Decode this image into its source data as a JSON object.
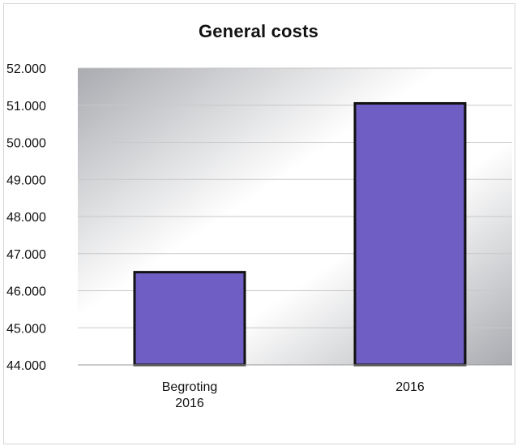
{
  "chart_data": {
    "type": "bar",
    "title": "General costs",
    "categories": [
      [
        "Begroting",
        "2016"
      ],
      [
        "2016"
      ]
    ],
    "values": [
      46500,
      51050
    ],
    "ylim": [
      44000,
      52000
    ],
    "yticks": [
      44000,
      45000,
      46000,
      47000,
      48000,
      49000,
      50000,
      51000,
      52000
    ],
    "ytick_labels": [
      "44.000",
      "45.000",
      "46.000",
      "47.000",
      "48.000",
      "49.000",
      "50.000",
      "51.000",
      "52.000"
    ],
    "xlabel": "",
    "ylabel": "",
    "grid": true,
    "legend": "none",
    "colors": {
      "bar_fill": "#6f5fc4",
      "bar_stroke": "#111111",
      "grid": "#c8c8c8",
      "plot_bg_dark": "#a9abb0",
      "plot_bg_light": "#ffffff"
    }
  }
}
